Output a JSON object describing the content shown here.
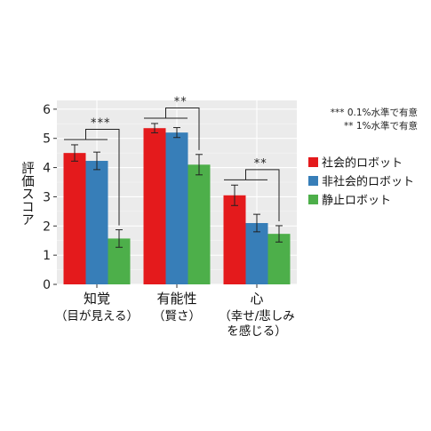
{
  "chart_data": {
    "type": "bar",
    "categories": [
      {
        "name": "知覚",
        "sub": [
          "（目が見える）"
        ]
      },
      {
        "name": "有能性",
        "sub": [
          "（賢さ）"
        ]
      },
      {
        "name": "心",
        "sub": [
          "（幸せ/悲しみ",
          "を感じる）"
        ]
      }
    ],
    "series": [
      {
        "name": "社会的ロボット",
        "color": "#e41a1c",
        "values": [
          4.5,
          5.35,
          3.05
        ],
        "errors": [
          0.28,
          0.16,
          0.35
        ]
      },
      {
        "name": "非社会的ロボット",
        "color": "#377eb8",
        "values": [
          4.23,
          5.2,
          2.1
        ],
        "errors": [
          0.3,
          0.17,
          0.3
        ]
      },
      {
        "name": "静止ロボット",
        "color": "#4daf4a",
        "values": [
          1.57,
          4.1,
          1.73
        ],
        "errors": [
          0.3,
          0.35,
          0.28
        ]
      }
    ],
    "ylabel": "評価スコア",
    "ylim": [
      0,
      6.3
    ],
    "yticks": [
      0,
      1,
      2,
      3,
      4,
      5,
      6
    ],
    "grid": true,
    "legend": "right",
    "significance": [
      {
        "category": 0,
        "label": "***"
      },
      {
        "category": 1,
        "label": "**"
      },
      {
        "category": 2,
        "label": "**"
      }
    ],
    "notes": [
      "*** 0.1%水準で有意",
      "** 1%水準で有意"
    ]
  }
}
